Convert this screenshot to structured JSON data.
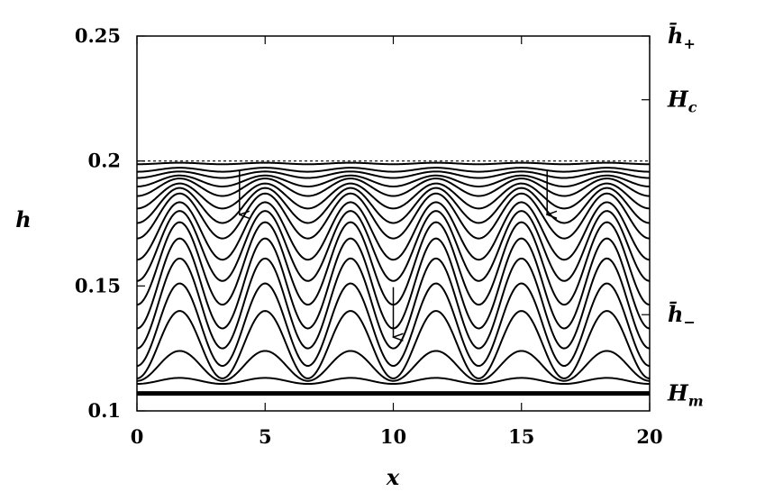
{
  "chart_data": {
    "type": "line",
    "title": "",
    "xlabel": "x",
    "ylabel": "h",
    "xlim": [
      0,
      20
    ],
    "ylim": [
      0.1,
      0.25
    ],
    "x_ticks": [
      "0",
      "5",
      "10",
      "15",
      "20"
    ],
    "x_tick_values": [
      0,
      5,
      10,
      15,
      20
    ],
    "y_ticks": [
      "0.1",
      "0.15",
      "0.2",
      "0.25"
    ],
    "y_tick_values": [
      0.1,
      0.15,
      0.2,
      0.25
    ],
    "right_axis_labels": [
      {
        "name": "h̄",
        "sub": "+",
        "value": 0.25
      },
      {
        "name": "H",
        "sub": "c",
        "value": 0.2245
      },
      {
        "name": "h̄",
        "sub": "−",
        "value": 0.1385
      },
      {
        "name": "H",
        "sub": "m",
        "value": 0.107
      }
    ],
    "wave_period": 3.333,
    "reference_line": {
      "style": "dashed",
      "value": 0.2
    },
    "series": [
      {
        "mean": 0.199,
        "amplitude": 0.0003
      },
      {
        "mean": 0.1965,
        "amplitude": 0.0008
      },
      {
        "mean": 0.1945,
        "amplitude": 0.0013
      },
      {
        "mean": 0.192,
        "amplitude": 0.0022
      },
      {
        "mean": 0.1895,
        "amplitude": 0.0035
      },
      {
        "mean": 0.186,
        "amplitude": 0.005
      },
      {
        "mean": 0.1822,
        "amplitude": 0.007
      },
      {
        "mean": 0.178,
        "amplitude": 0.009
      },
      {
        "mean": 0.172,
        "amplitude": 0.0115
      },
      {
        "mean": 0.166,
        "amplitude": 0.014
      },
      {
        "mean": 0.159,
        "amplitude": 0.0165
      },
      {
        "mean": 0.151,
        "amplitude": 0.018
      },
      {
        "mean": 0.143,
        "amplitude": 0.018
      },
      {
        "mean": 0.1345,
        "amplitude": 0.0165
      },
      {
        "mean": 0.1265,
        "amplitude": 0.0135
      },
      {
        "mean": 0.118,
        "amplitude": 0.006
      },
      {
        "mean": 0.112,
        "amplitude": 0.0012
      }
    ],
    "thick_line": {
      "value": 0.107
    },
    "arrows": [
      {
        "x": 4.0,
        "y_from": 0.1965,
        "y_to": 0.1785
      },
      {
        "x": 16.0,
        "y_from": 0.1965,
        "y_to": 0.1785
      },
      {
        "x": 10.0,
        "y_from": 0.1495,
        "y_to": 0.1295
      }
    ],
    "grid": false,
    "legend": "none"
  }
}
